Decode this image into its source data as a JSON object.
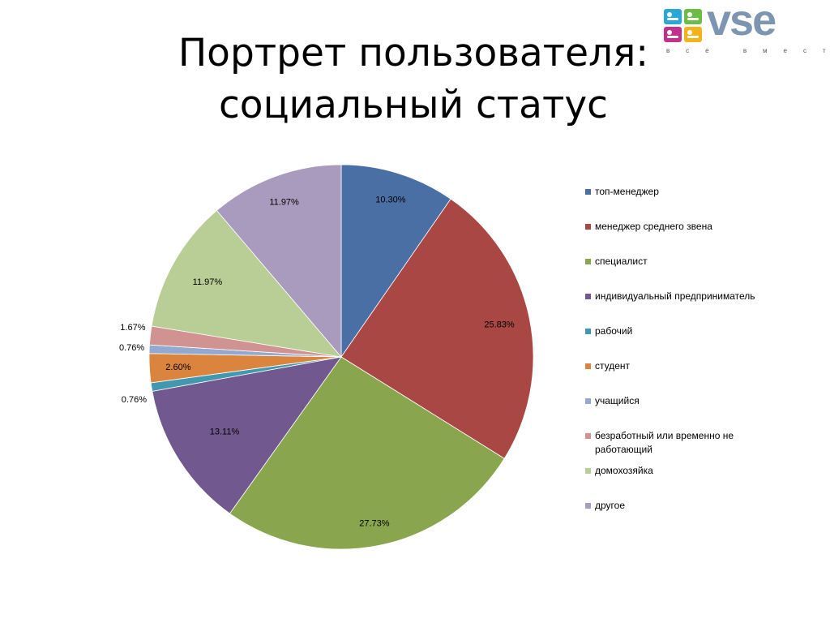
{
  "slide": {
    "title_line1": "Портрет пользователя:",
    "title_line2": "социальный статус"
  },
  "logo": {
    "text": "vse",
    "tagline": "все вместе"
  },
  "chart_data": {
    "type": "pie",
    "start_angle_deg": 0,
    "direction": "clockwise",
    "legend_position": "right",
    "categories": [
      "топ-менеджер",
      "менеджер среднего звена",
      "специалист",
      "индивидуальный предприниматель",
      "рабочий",
      "студент",
      "учащийся",
      "безработный или временно не работающий",
      "домохозяйка",
      "другое"
    ],
    "values": [
      10.3,
      25.83,
      27.73,
      13.11,
      0.76,
      2.6,
      0.76,
      1.67,
      11.97,
      11.97
    ],
    "data_labels": [
      "10.30%",
      "25.83%",
      "27.73%",
      "13.11%",
      "0.76%",
      "2.60%",
      "0.76%",
      "1.67%",
      "11.97%",
      "11.97%"
    ],
    "colors": [
      "#4a6fa5",
      "#a94745",
      "#89a54e",
      "#71588f",
      "#4198af",
      "#db843d",
      "#93a9cf",
      "#d19392",
      "#b9cd96",
      "#a99bbd"
    ]
  }
}
